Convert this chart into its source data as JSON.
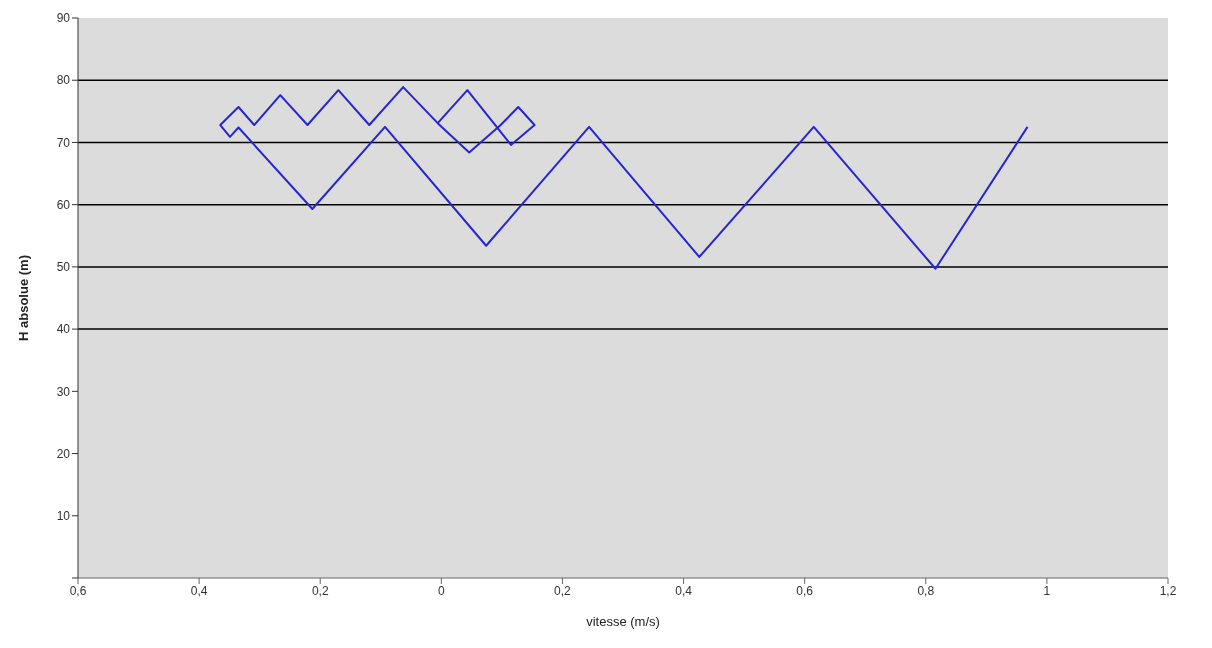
{
  "chart_data": {
    "type": "line",
    "xlabel": "vitesse (m/s)",
    "ylabel": "H absolue (m)",
    "xlim": [
      -0.6,
      1.2
    ],
    "xticks": [
      {
        "value": -0.6,
        "label": "0,6"
      },
      {
        "value": -0.4,
        "label": "0,4"
      },
      {
        "value": -0.2,
        "label": "0,2"
      },
      0,
      {
        "value": 0.2,
        "label": "0,2"
      },
      {
        "value": 0.4,
        "label": "0,4"
      },
      {
        "value": 0.6,
        "label": "0,6"
      },
      {
        "value": 0.8,
        "label": "0,8"
      },
      1,
      {
        "value": 1.2,
        "label": "1,2"
      }
    ],
    "ylim": [
      0,
      90
    ],
    "yticks": [
      {
        "value": 0,
        "label": null
      },
      10,
      20,
      30,
      40,
      50,
      60,
      70,
      80,
      90
    ],
    "grid": false,
    "marker": "none",
    "line_style": "solid",
    "ref_lines": [
      {
        "axis": "y",
        "value": 40,
        "color": "#000000"
      },
      {
        "axis": "y",
        "value": 50,
        "color": "#000000"
      },
      {
        "axis": "y",
        "value": 60,
        "color": "#000000"
      },
      {
        "axis": "y",
        "value": 70,
        "color": "#000000"
      },
      {
        "axis": "y",
        "value": 80,
        "color": "#000000"
      }
    ],
    "series": [
      {
        "color": "#2626d0",
        "x": [
          0.968,
          0.816,
          0.615,
          0.426,
          0.244,
          0.074,
          -0.093,
          -0.213,
          -0.335,
          -0.349,
          -0.365,
          -0.335,
          -0.309,
          -0.266,
          -0.221,
          -0.17,
          -0.119,
          -0.063,
          -0.006,
          0.043,
          0.115,
          0.154,
          0.127,
          0.098,
          0.046,
          -0.006
        ],
        "values": [
          72.5,
          49.7,
          72.5,
          51.6,
          72.5,
          53.4,
          72.5,
          59.3,
          72.4,
          70.9,
          72.8,
          75.7,
          72.8,
          77.6,
          72.8,
          78.4,
          72.8,
          78.9,
          73.1,
          78.4,
          69.6,
          72.8,
          75.7,
          72.8,
          68.4,
          73.1
        ]
      }
    ]
  }
}
